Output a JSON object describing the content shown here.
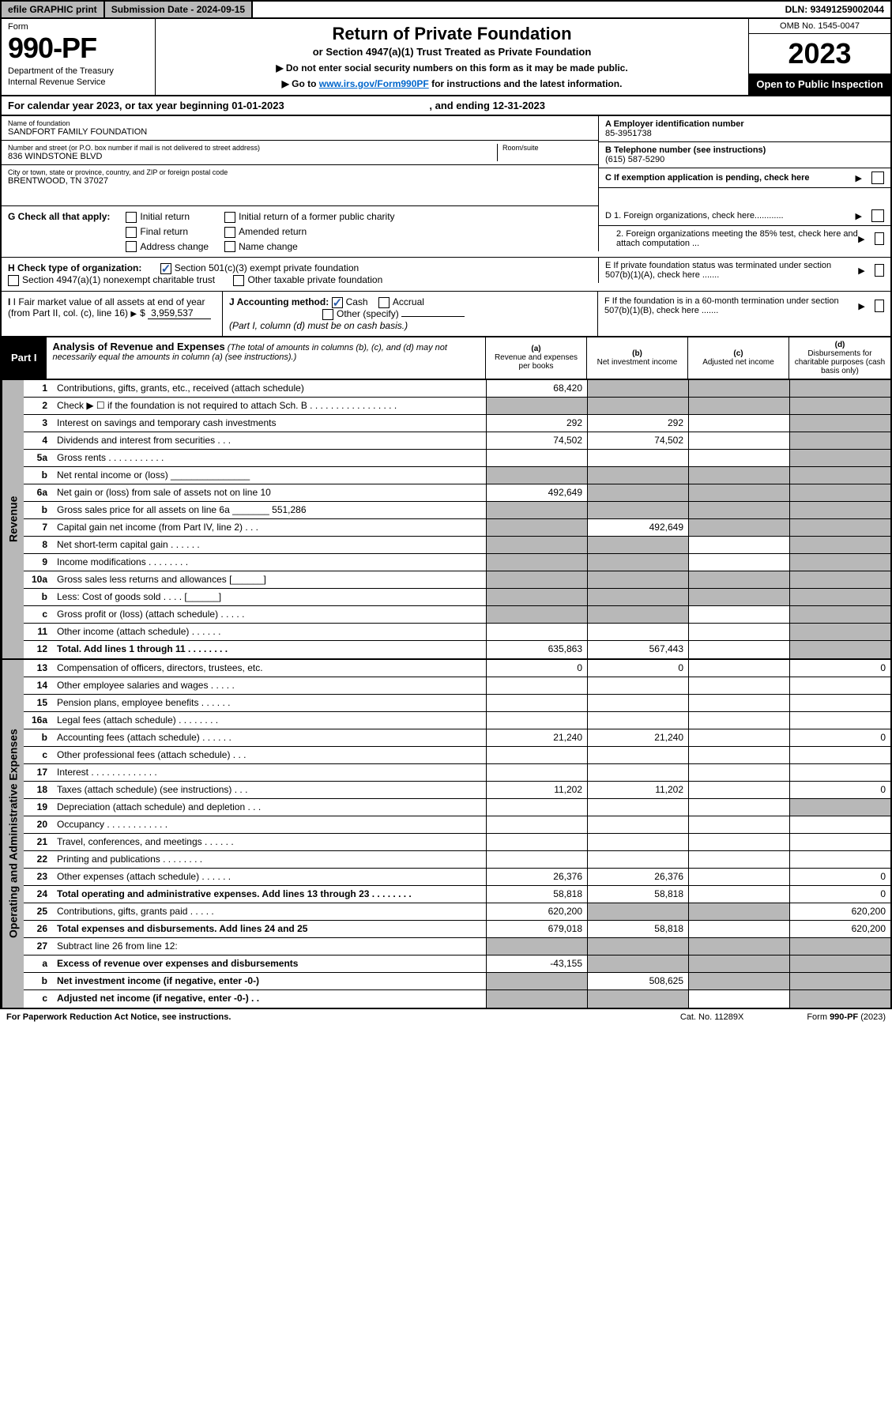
{
  "topbar": {
    "efile": "efile GRAPHIC print",
    "subdate_label": "Submission Date - ",
    "subdate": "2024-09-15",
    "dln_label": "DLN: ",
    "dln": "93491259002044"
  },
  "header": {
    "form_label": "Form",
    "form_no": "990-PF",
    "dept1": "Department of the Treasury",
    "dept2": "Internal Revenue Service",
    "title": "Return of Private Foundation",
    "subtitle": "or Section 4947(a)(1) Trust Treated as Private Foundation",
    "note1": "▶ Do not enter social security numbers on this form as it may be made public.",
    "note2_pre": "▶ Go to ",
    "note2_link": "www.irs.gov/Form990PF",
    "note2_post": " for instructions and the latest information.",
    "omb": "OMB No. 1545-0047",
    "year": "2023",
    "open": "Open to Public Inspection"
  },
  "cal": {
    "text": "For calendar year 2023, or tax year beginning 01-01-2023",
    "end": ", and ending 12-31-2023"
  },
  "id": {
    "name_label": "Name of foundation",
    "name": "SANDFORT FAMILY FOUNDATION",
    "addr_label": "Number and street (or P.O. box number if mail is not delivered to street address)",
    "street": "836 WINDSTONE BLVD",
    "room_label": "Room/suite",
    "city_label": "City or town, state or province, country, and ZIP or foreign postal code",
    "city": "BRENTWOOD, TN  37027",
    "a_label": "A Employer identification number",
    "ein": "85-3951738",
    "b_label": "B Telephone number (see instructions)",
    "phone": "(615) 587-5290",
    "c_label": "C If exemption application is pending, check here",
    "d1": "D 1. Foreign organizations, check here............",
    "d2": "2. Foreign organizations meeting the 85% test, check here and attach computation ...",
    "e": "E  If private foundation status was terminated under section 507(b)(1)(A), check here .......",
    "f": "F  If the foundation is in a 60-month termination under section 507(b)(1)(B), check here .......",
    "g_label": "G Check all that apply:",
    "g_opts": [
      "Initial return",
      "Initial return of a former public charity",
      "Final return",
      "Amended return",
      "Address change",
      "Name change"
    ],
    "h_label": "H Check type of organization:",
    "h1": "Section 501(c)(3) exempt private foundation",
    "h2": "Section 4947(a)(1) nonexempt charitable trust",
    "h3": "Other taxable private foundation",
    "i_label": "I Fair market value of all assets at end of year (from Part II, col. (c), line 16)",
    "i_val": "3,959,537",
    "j_label": "J Accounting method:",
    "j_cash": "Cash",
    "j_accrual": "Accrual",
    "j_other": "Other (specify)",
    "j_note": "(Part I, column (d) must be on cash basis.)"
  },
  "part1": {
    "label": "Part I",
    "title": "Analysis of Revenue and Expenses",
    "note": "(The total of amounts in columns (b), (c), and (d) may not necessarily equal the amounts in column (a) (see instructions).)",
    "cols": [
      {
        "k": "(a)",
        "t": "Revenue and expenses per books"
      },
      {
        "k": "(b)",
        "t": "Net investment income"
      },
      {
        "k": "(c)",
        "t": "Adjusted net income"
      },
      {
        "k": "(d)",
        "t": "Disbursements for charitable purposes (cash basis only)"
      }
    ]
  },
  "sections": {
    "revenue": "Revenue",
    "expenses": "Operating and Administrative Expenses"
  },
  "rows_rev": [
    {
      "n": "1",
      "d": "Contributions, gifts, grants, etc., received (attach schedule)",
      "a": "68,420",
      "b": "",
      "bs": true,
      "c": "",
      "cs": true,
      "dd": "",
      "ds": true
    },
    {
      "n": "2",
      "d": "Check ▶ ☐ if the foundation is not required to attach Sch. B  . . . . . . . . . . . . . . . . .",
      "a": "",
      "as": true,
      "b": "",
      "bs": true,
      "c": "",
      "cs": true,
      "dd": "",
      "ds": true
    },
    {
      "n": "3",
      "d": "Interest on savings and temporary cash investments",
      "a": "292",
      "b": "292",
      "c": "",
      "dd": "",
      "ds": true
    },
    {
      "n": "4",
      "d": "Dividends and interest from securities   .   .   .",
      "a": "74,502",
      "b": "74,502",
      "c": "",
      "dd": "",
      "ds": true
    },
    {
      "n": "5a",
      "d": "Gross rents   .   .   .   .   .   .   .   .   .   .   .",
      "a": "",
      "b": "",
      "c": "",
      "dd": "",
      "ds": true
    },
    {
      "n": "b",
      "d": "Net rental income or (loss)  _______________",
      "a": "",
      "as": true,
      "b": "",
      "bs": true,
      "c": "",
      "cs": true,
      "dd": "",
      "ds": true
    },
    {
      "n": "6a",
      "d": "Net gain or (loss) from sale of assets not on line 10",
      "a": "492,649",
      "b": "",
      "bs": true,
      "c": "",
      "cs": true,
      "dd": "",
      "ds": true
    },
    {
      "n": "b",
      "d": "Gross sales price for all assets on line 6a _______ 551,286",
      "a": "",
      "as": true,
      "b": "",
      "bs": true,
      "c": "",
      "cs": true,
      "dd": "",
      "ds": true
    },
    {
      "n": "7",
      "d": "Capital gain net income (from Part IV, line 2)   .   .   .",
      "a": "",
      "as": true,
      "b": "492,649",
      "c": "",
      "cs": true,
      "dd": "",
      "ds": true
    },
    {
      "n": "8",
      "d": "Net short-term capital gain   .   .   .   .   .   .",
      "a": "",
      "as": true,
      "b": "",
      "bs": true,
      "c": "",
      "dd": "",
      "ds": true
    },
    {
      "n": "9",
      "d": "Income modifications  .   .   .   .   .   .   .   .",
      "a": "",
      "as": true,
      "b": "",
      "bs": true,
      "c": "",
      "dd": "",
      "ds": true
    },
    {
      "n": "10a",
      "d": "Gross sales less returns and allowances   [______]",
      "a": "",
      "as": true,
      "b": "",
      "bs": true,
      "c": "",
      "cs": true,
      "dd": "",
      "ds": true
    },
    {
      "n": "b",
      "d": "Less: Cost of goods sold   .   .   .   .   [______]",
      "a": "",
      "as": true,
      "b": "",
      "bs": true,
      "c": "",
      "cs": true,
      "dd": "",
      "ds": true
    },
    {
      "n": "c",
      "d": "Gross profit or (loss) (attach schedule)   .   .   .   .   .",
      "a": "",
      "as": true,
      "b": "",
      "bs": true,
      "c": "",
      "dd": "",
      "ds": true
    },
    {
      "n": "11",
      "d": "Other income (attach schedule)   .   .   .   .   .   .",
      "a": "",
      "b": "",
      "c": "",
      "dd": "",
      "ds": true
    },
    {
      "n": "12",
      "d": "Total. Add lines 1 through 11   .   .   .   .   .   .   .   .",
      "b1": true,
      "a": "635,863",
      "b": "567,443",
      "c": "",
      "dd": "",
      "ds": true
    }
  ],
  "rows_exp": [
    {
      "n": "13",
      "d": "Compensation of officers, directors, trustees, etc.",
      "a": "0",
      "b": "0",
      "c": "",
      "dd": "0"
    },
    {
      "n": "14",
      "d": "Other employee salaries and wages   .   .   .   .   .",
      "a": "",
      "b": "",
      "c": "",
      "dd": ""
    },
    {
      "n": "15",
      "d": "Pension plans, employee benefits  .   .   .   .   .   .",
      "a": "",
      "b": "",
      "c": "",
      "dd": ""
    },
    {
      "n": "16a",
      "d": "Legal fees (attach schedule)  .   .   .   .   .   .   .   .",
      "a": "",
      "b": "",
      "c": "",
      "dd": ""
    },
    {
      "n": "b",
      "d": "Accounting fees (attach schedule)  .   .   .   .   .   .",
      "a": "21,240",
      "b": "21,240",
      "c": "",
      "dd": "0"
    },
    {
      "n": "c",
      "d": "Other professional fees (attach schedule)   .   .   .",
      "a": "",
      "b": "",
      "c": "",
      "dd": ""
    },
    {
      "n": "17",
      "d": "Interest  .   .   .   .   .   .   .   .   .   .   .   .   .",
      "a": "",
      "b": "",
      "c": "",
      "dd": ""
    },
    {
      "n": "18",
      "d": "Taxes (attach schedule) (see instructions)   .   .   .",
      "a": "11,202",
      "b": "11,202",
      "c": "",
      "dd": "0"
    },
    {
      "n": "19",
      "d": "Depreciation (attach schedule) and depletion   .   .   .",
      "a": "",
      "b": "",
      "c": "",
      "dd": "",
      "ds": true
    },
    {
      "n": "20",
      "d": "Occupancy  .   .   .   .   .   .   .   .   .   .   .   .",
      "a": "",
      "b": "",
      "c": "",
      "dd": ""
    },
    {
      "n": "21",
      "d": "Travel, conferences, and meetings  .   .   .   .   .   .",
      "a": "",
      "b": "",
      "c": "",
      "dd": ""
    },
    {
      "n": "22",
      "d": "Printing and publications  .   .   .   .   .   .   .   .",
      "a": "",
      "b": "",
      "c": "",
      "dd": ""
    },
    {
      "n": "23",
      "d": "Other expenses (attach schedule)  .   .   .   .   .   .",
      "a": "26,376",
      "b": "26,376",
      "c": "",
      "dd": "0"
    },
    {
      "n": "24",
      "d": "Total operating and administrative expenses. Add lines 13 through 23   .   .   .   .   .   .   .   .",
      "b1": true,
      "a": "58,818",
      "b": "58,818",
      "c": "",
      "dd": "0"
    },
    {
      "n": "25",
      "d": "Contributions, gifts, grants paid   .   .   .   .   .",
      "a": "620,200",
      "b": "",
      "bs": true,
      "c": "",
      "cs": true,
      "dd": "620,200"
    },
    {
      "n": "26",
      "d": "Total expenses and disbursements. Add lines 24 and 25",
      "b1": true,
      "a": "679,018",
      "b": "58,818",
      "c": "",
      "dd": "620,200"
    },
    {
      "n": "27",
      "d": "Subtract line 26 from line 12:",
      "a": "",
      "as": true,
      "b": "",
      "bs": true,
      "c": "",
      "cs": true,
      "dd": "",
      "ds": true
    },
    {
      "n": "a",
      "d": "Excess of revenue over expenses and disbursements",
      "b1": true,
      "a": "-43,155",
      "b": "",
      "bs": true,
      "c": "",
      "cs": true,
      "dd": "",
      "ds": true
    },
    {
      "n": "b",
      "d": "Net investment income (if negative, enter -0-)",
      "b1": true,
      "a": "",
      "as": true,
      "b": "508,625",
      "c": "",
      "cs": true,
      "dd": "",
      "ds": true
    },
    {
      "n": "c",
      "d": "Adjusted net income (if negative, enter -0-)   .   .",
      "b1": true,
      "a": "",
      "as": true,
      "b": "",
      "bs": true,
      "c": "",
      "dd": "",
      "ds": true
    }
  ],
  "footer": {
    "left": "For Paperwork Reduction Act Notice, see instructions.",
    "mid": "Cat. No. 11289X",
    "right": "Form 990-PF (2023)"
  }
}
